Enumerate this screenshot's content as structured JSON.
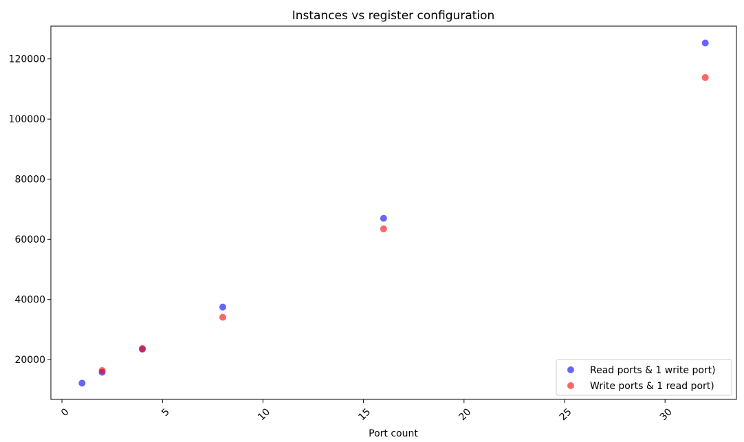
{
  "chart_data": {
    "type": "scatter",
    "title": "Instances vs register configuration",
    "xlabel": "Port count",
    "ylabel": "",
    "xlim": [
      -0.55,
      33.55
    ],
    "ylim": [
      6800,
      130900
    ],
    "x_ticks": [
      0,
      5,
      10,
      15,
      20,
      25,
      30
    ],
    "y_ticks": [
      20000,
      40000,
      60000,
      80000,
      100000,
      120000
    ],
    "x_tick_rotation": 45,
    "grid": false,
    "legend_position": "bottom-right",
    "series": [
      {
        "name": "Read ports & 1 write port)",
        "color": "#0000ff",
        "alpha": 0.6,
        "points": [
          {
            "x": 1,
            "y": 12200
          },
          {
            "x": 2,
            "y": 15800
          },
          {
            "x": 4,
            "y": 23500
          },
          {
            "x": 8,
            "y": 37500
          },
          {
            "x": 16,
            "y": 67000
          },
          {
            "x": 32,
            "y": 125300
          }
        ]
      },
      {
        "name": "Write ports & 1 read port)",
        "color": "#ff0000",
        "alpha": 0.6,
        "points": [
          {
            "x": 2,
            "y": 16400
          },
          {
            "x": 4,
            "y": 23700
          },
          {
            "x": 8,
            "y": 34100
          },
          {
            "x": 16,
            "y": 63500
          },
          {
            "x": 32,
            "y": 113800
          }
        ]
      }
    ]
  }
}
